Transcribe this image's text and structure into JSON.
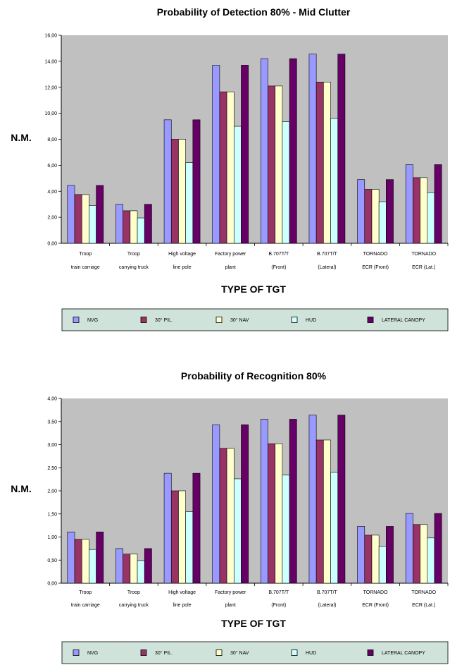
{
  "colors": {
    "plot_bg": "#c0c0c0",
    "legend_bg": "#cfe3da",
    "series": [
      "#9999ff",
      "#993366",
      "#ffffcc",
      "#ccffff",
      "#660066"
    ]
  },
  "chart_data": [
    {
      "type": "bar",
      "title": "Probability of Detection 80% - Mid Clutter",
      "ylabel": "N.M.",
      "xlabel": "TYPE OF TGT",
      "ylim": [
        0,
        16
      ],
      "ytick_step": 2,
      "ytick_labels": [
        "0,00",
        "2,00",
        "4,00",
        "6,00",
        "8,00",
        "10,00",
        "12,00",
        "14,00",
        "16,00"
      ],
      "grid": false,
      "legend_position": "bottom",
      "categories": [
        [
          "Troop",
          "train carriage"
        ],
        [
          "Troop",
          "carrying truck"
        ],
        [
          "High voltage",
          "line pole"
        ],
        [
          "Factory power",
          "plant"
        ],
        [
          "B.707T/T",
          "(Front)"
        ],
        [
          "B.707T/T",
          "(Lateral)"
        ],
        [
          "TORNADO",
          "ECR (Front)"
        ],
        [
          "TORNADO",
          "ECR (Lat.)"
        ]
      ],
      "series": [
        {
          "name": "NVG",
          "values": [
            4.45,
            3.0,
            9.5,
            13.7,
            14.2,
            14.55,
            4.9,
            6.05
          ]
        },
        {
          "name": "30° PIL.",
          "values": [
            3.75,
            2.5,
            8.0,
            11.65,
            12.1,
            12.4,
            4.15,
            5.05
          ]
        },
        {
          "name": "30° NAV",
          "values": [
            3.75,
            2.5,
            8.0,
            11.65,
            12.1,
            12.4,
            4.15,
            5.05
          ]
        },
        {
          "name": "HUD",
          "values": [
            2.9,
            1.95,
            6.2,
            9.0,
            9.35,
            9.6,
            3.2,
            3.9
          ]
        },
        {
          "name": "LATERAL CANOPY",
          "values": [
            4.45,
            3.0,
            9.5,
            13.7,
            14.2,
            14.55,
            4.9,
            6.05
          ]
        }
      ]
    },
    {
      "type": "bar",
      "title": "Probability of Recognition 80%",
      "ylabel": "N.M.",
      "xlabel": "TYPE OF TGT",
      "ylim": [
        0,
        4
      ],
      "ytick_step": 0.5,
      "ytick_labels": [
        "0,00",
        "0,50",
        "1,00",
        "1,50",
        "2,00",
        "2,50",
        "3,00",
        "3,50",
        "4,00"
      ],
      "grid": false,
      "legend_position": "bottom",
      "categories": [
        [
          "Troop",
          "train carriage"
        ],
        [
          "Troop",
          "carrying truck"
        ],
        [
          "High voltage",
          "line pole"
        ],
        [
          "Factory power",
          "plant"
        ],
        [
          "B.707T/T",
          "(Front)"
        ],
        [
          "B.707T/T",
          "(Lateral)"
        ],
        [
          "TORNADO",
          "ECR (Front)"
        ],
        [
          "TORNADO",
          "ECR (Lat.)"
        ]
      ],
      "series": [
        {
          "name": "NVG",
          "values": [
            1.11,
            0.75,
            2.38,
            3.43,
            3.55,
            3.64,
            1.23,
            1.51
          ]
        },
        {
          "name": "30° PIL.",
          "values": [
            0.95,
            0.63,
            2.0,
            2.92,
            3.02,
            3.1,
            1.04,
            1.27
          ]
        },
        {
          "name": "30° NAV",
          "values": [
            0.95,
            0.63,
            2.0,
            2.92,
            3.02,
            3.1,
            1.04,
            1.27
          ]
        },
        {
          "name": "HUD",
          "values": [
            0.73,
            0.49,
            1.55,
            2.26,
            2.34,
            2.4,
            0.8,
            0.98
          ]
        },
        {
          "name": "LATERAL CANOPY",
          "values": [
            1.11,
            0.75,
            2.38,
            3.43,
            3.55,
            3.64,
            1.23,
            1.51
          ]
        }
      ]
    }
  ]
}
